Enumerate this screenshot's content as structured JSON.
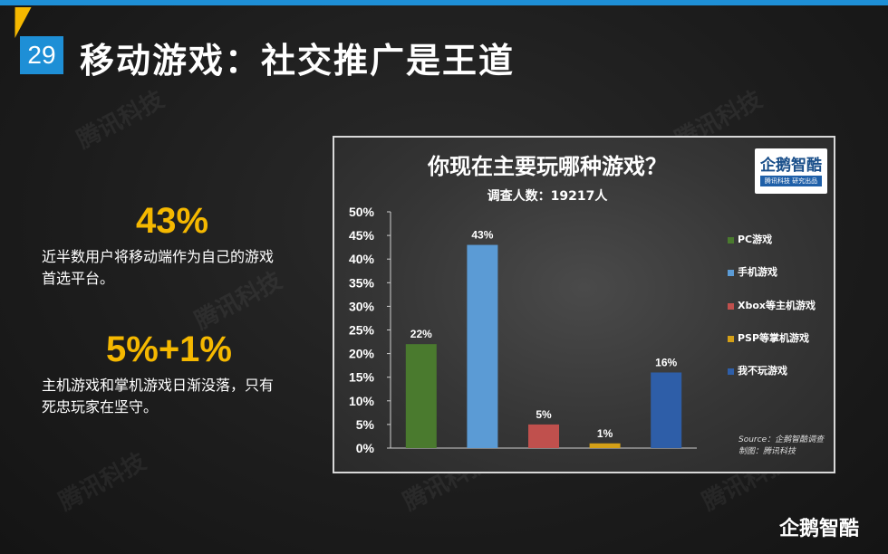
{
  "slide": {
    "page_number": "29",
    "title": "移动游戏：社交推广是王道",
    "watermark_text": "腾讯科技",
    "bottom_logo": "企鹅智酷"
  },
  "stats": [
    {
      "value": "43%",
      "desc_line1": "近半数用户将移动端作为自己的游戏",
      "desc_line2": "首选平台。"
    },
    {
      "value": "5%+1%",
      "desc_line1": "主机游戏和掌机游戏日渐没落，只有",
      "desc_line2": "死忠玩家在坚守。"
    }
  ],
  "chart_logo": {
    "main": "企鹅智酷",
    "sub": "腾讯科技 研究出品"
  },
  "source": {
    "line1": "Source：企鹅智酷调查",
    "line2": "制图：腾讯科技"
  },
  "chart_data": {
    "type": "bar",
    "title": "你现在主要玩哪种游戏？",
    "subtitle": "调查人数：19217人",
    "categories": [
      "PC游戏",
      "手机游戏",
      "Xbox等主机游戏",
      "PSP等掌机游戏",
      "我不玩游戏"
    ],
    "values": [
      22,
      43,
      5,
      1,
      16
    ],
    "value_labels": [
      "22%",
      "43%",
      "5%",
      "1%",
      "16%"
    ],
    "colors": [
      "#4a7a2e",
      "#5b9bd5",
      "#c0504d",
      "#d4a017",
      "#2e5ea8"
    ],
    "ylim": [
      0,
      50
    ],
    "yticks": [
      "0%",
      "5%",
      "10%",
      "15%",
      "20%",
      "25%",
      "30%",
      "35%",
      "40%",
      "45%",
      "50%"
    ],
    "grid": false,
    "legend": "right"
  }
}
